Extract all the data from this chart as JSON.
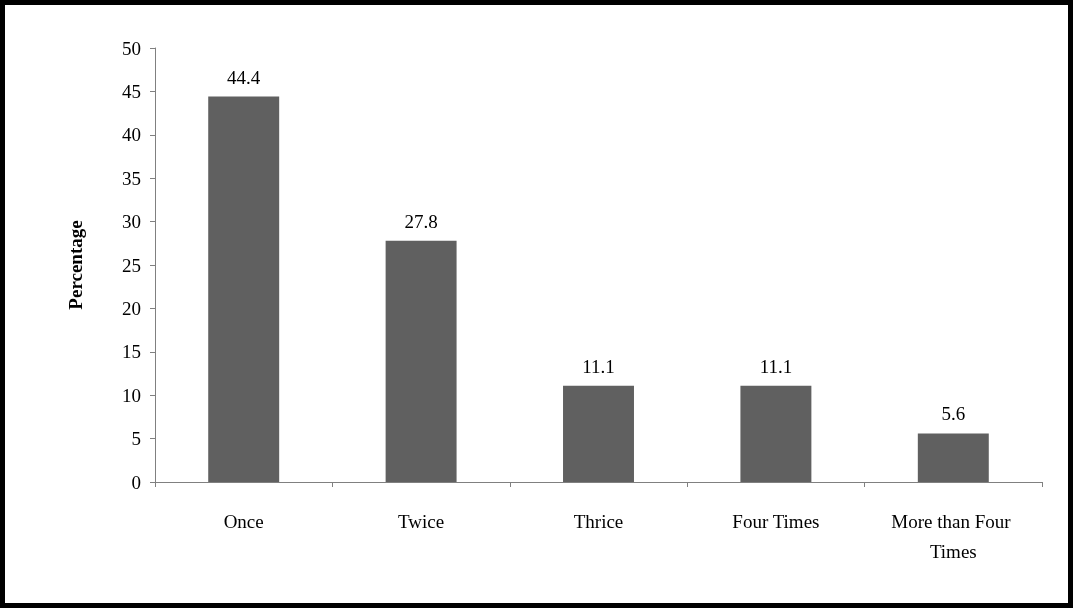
{
  "chart_data": {
    "type": "bar",
    "ylabel": "Percentage",
    "categories": [
      "Once",
      "Twice",
      "Thrice",
      "Four Times",
      "More than Four Times"
    ],
    "values": [
      44.4,
      27.8,
      11.1,
      11.1,
      5.6
    ],
    "color": "#606060",
    "ylim": [
      0,
      50
    ],
    "yticks": [
      0,
      5,
      10,
      15,
      20,
      25,
      30,
      35,
      40,
      45,
      50
    ],
    "data_labels": true
  }
}
